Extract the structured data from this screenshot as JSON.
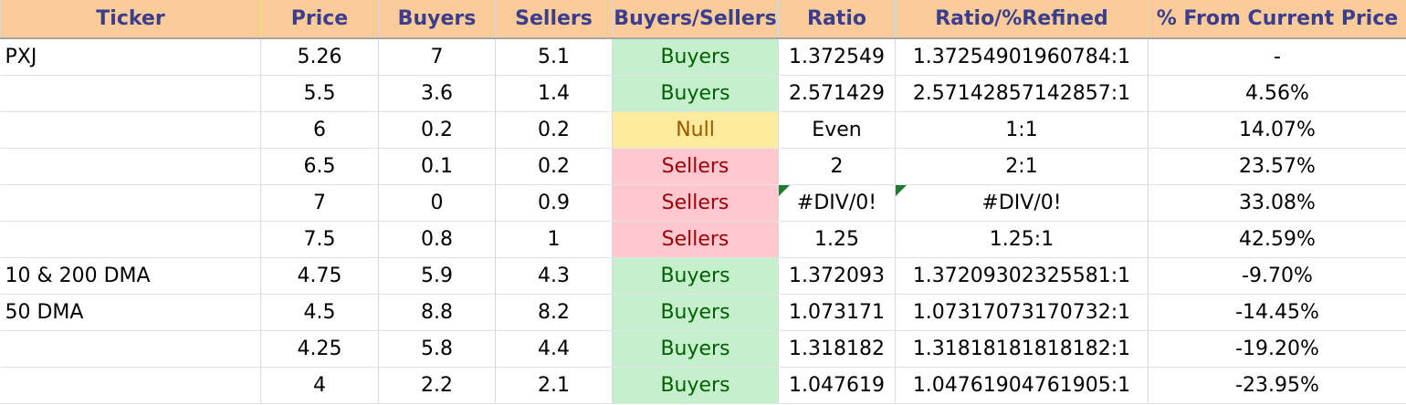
{
  "headers": [
    "Ticker",
    "Price",
    "Buyers",
    "Sellers",
    "Buyers/Sellers",
    "Ratio",
    "Ratio/%Refined",
    "% From Current Price"
  ],
  "rows": [
    {
      "ticker": "PXJ",
      "price": "5.26",
      "buyers": "7",
      "sellers": "5.1",
      "bs": "Buyers",
      "ratio": "1.372549",
      "refined": "1.37254901960784:1",
      "pct": "-"
    },
    {
      "ticker": "",
      "price": "5.5",
      "buyers": "3.6",
      "sellers": "1.4",
      "bs": "Buyers",
      "ratio": "2.571429",
      "refined": "2.57142857142857:1",
      "pct": "4.56%"
    },
    {
      "ticker": "",
      "price": "6",
      "buyers": "0.2",
      "sellers": "0.2",
      "bs": "Null",
      "ratio": "Even",
      "refined": "1:1",
      "pct": "14.07%"
    },
    {
      "ticker": "",
      "price": "6.5",
      "buyers": "0.1",
      "sellers": "0.2",
      "bs": "Sellers",
      "ratio": "2",
      "refined": "2:1",
      "pct": "23.57%"
    },
    {
      "ticker": "",
      "price": "7",
      "buyers": "0",
      "sellers": "0.9",
      "bs": "Sellers",
      "ratio": "#DIV/0!",
      "refined": "#DIV/0!",
      "pct": "33.08%",
      "error_flag": true
    },
    {
      "ticker": "",
      "price": "7.5",
      "buyers": "0.8",
      "sellers": "1",
      "bs": "Sellers",
      "ratio": "1.25",
      "refined": "1.25:1",
      "pct": "42.59%"
    },
    {
      "ticker": "10 & 200 DMA",
      "price": "4.75",
      "buyers": "5.9",
      "sellers": "4.3",
      "bs": "Buyers",
      "ratio": "1.372093",
      "refined": "1.37209302325581:1",
      "pct": "-9.70%"
    },
    {
      "ticker": "50 DMA",
      "price": "4.5",
      "buyers": "8.8",
      "sellers": "8.2",
      "bs": "Buyers",
      "ratio": "1.073171",
      "refined": "1.07317073170732:1",
      "pct": "-14.45%"
    },
    {
      "ticker": "",
      "price": "4.25",
      "buyers": "5.8",
      "sellers": "4.4",
      "bs": "Buyers",
      "ratio": "1.318182",
      "refined": "1.31818181818182:1",
      "pct": "-19.20%"
    },
    {
      "ticker": "",
      "price": "4",
      "buyers": "2.2",
      "sellers": "2.1",
      "bs": "Buyers",
      "ratio": "1.047619",
      "refined": "1.04761904761905:1",
      "pct": "-23.95%"
    }
  ],
  "colors": {
    "header_bg": "#fbcb9a",
    "header_text": "#3b3e8c",
    "buyers_bg": "#c6efce",
    "buyers_text": "#006100",
    "sellers_bg": "#ffc7ce",
    "sellers_text": "#9c0006",
    "null_bg": "#ffeb9c",
    "null_text": "#9c5700",
    "error_flag": "#1e7b34"
  }
}
